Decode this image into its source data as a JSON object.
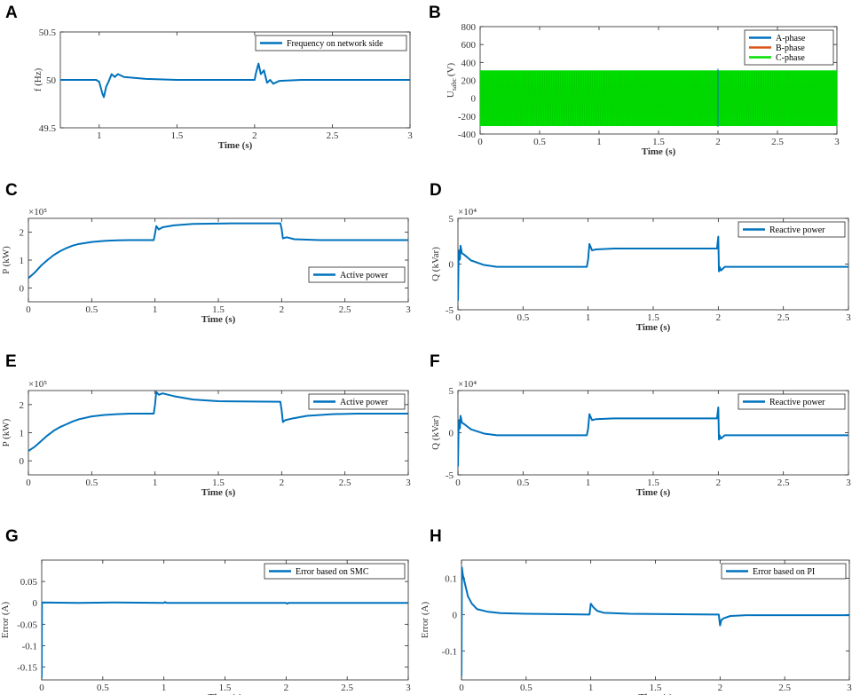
{
  "chart_data": [
    {
      "id": "A",
      "panel_label": "A",
      "type": "line",
      "title": "",
      "xlabel": "Time (s)",
      "ylabel": "f (Hz)",
      "y_multiplier": "",
      "xlim": [
        0.75,
        3
      ],
      "ylim": [
        49.5,
        50.5
      ],
      "xticks": [
        1,
        1.5,
        2,
        2.5,
        3
      ],
      "xtick_labels": [
        "1",
        "1.5",
        "2",
        "2.5",
        "3"
      ],
      "yticks": [
        49.5,
        50,
        50.5
      ],
      "ytick_labels": [
        "49.5",
        "50",
        "50.5"
      ],
      "legend": "top-right",
      "series": [
        {
          "name": "Frequency on network side",
          "color": "#0072BD",
          "points": [
            [
              0.75,
              50.0
            ],
            [
              0.98,
              50.0
            ],
            [
              1.0,
              49.98
            ],
            [
              1.02,
              49.86
            ],
            [
              1.03,
              49.82
            ],
            [
              1.045,
              49.93
            ],
            [
              1.06,
              49.98
            ],
            [
              1.08,
              50.06
            ],
            [
              1.1,
              50.03
            ],
            [
              1.12,
              50.06
            ],
            [
              1.16,
              50.03
            ],
            [
              1.3,
              50.01
            ],
            [
              1.5,
              50.0
            ],
            [
              2.0,
              50.0
            ],
            [
              2.01,
              50.08
            ],
            [
              2.025,
              50.17
            ],
            [
              2.04,
              50.06
            ],
            [
              2.06,
              50.1
            ],
            [
              2.08,
              49.97
            ],
            [
              2.1,
              50.0
            ],
            [
              2.12,
              49.96
            ],
            [
              2.16,
              49.99
            ],
            [
              2.3,
              50.0
            ],
            [
              3.0,
              50.0
            ]
          ]
        }
      ]
    },
    {
      "id": "B",
      "panel_label": "B",
      "type": "line",
      "title": "",
      "xlabel": "Time (s)",
      "ylabel": "U",
      "ylabel_sub": "sabc",
      "ylabel_unit": "(V)",
      "y_multiplier": "",
      "xlim": [
        0,
        3
      ],
      "ylim": [
        -400,
        800
      ],
      "xticks": [
        0,
        0.5,
        1,
        1.5,
        2,
        2.5,
        3
      ],
      "xtick_labels": [
        "0",
        "0.5",
        "1",
        "1.5",
        "2",
        "2.5",
        "3"
      ],
      "yticks": [
        -400,
        -200,
        0,
        200,
        400,
        600,
        800
      ],
      "ytick_labels": [
        "-400",
        "-200",
        "0",
        "200",
        "400",
        "600",
        "800"
      ],
      "legend": "top-right",
      "band": {
        "min": -311,
        "max": 311
      },
      "series": [
        {
          "name": "A-phase",
          "color": "#0072BD",
          "amplitude": 311
        },
        {
          "name": "B-phase",
          "color": "#D95319",
          "amplitude": 311
        },
        {
          "name": "C-phase",
          "color": "#00E000",
          "amplitude": 311
        }
      ]
    },
    {
      "id": "C",
      "panel_label": "C",
      "type": "line",
      "title": "",
      "xlabel": "Time (s)",
      "ylabel": "P (kW)",
      "y_multiplier": "×10⁵",
      "xlim": [
        0,
        3
      ],
      "ylim": [
        -0.5,
        2.5
      ],
      "xticks": [
        0,
        0.5,
        1,
        1.5,
        2,
        2.5,
        3
      ],
      "xtick_labels": [
        "0",
        "0.5",
        "1",
        "1.5",
        "2",
        "2.5",
        "3"
      ],
      "yticks": [
        0,
        1,
        2
      ],
      "ytick_labels": [
        "0",
        "1",
        "2"
      ],
      "legend": "bottom-right",
      "series": [
        {
          "name": "Active power",
          "color": "#0072BD",
          "points": [
            [
              0,
              0.35
            ],
            [
              0.05,
              0.55
            ],
            [
              0.1,
              0.8
            ],
            [
              0.15,
              1.0
            ],
            [
              0.2,
              1.18
            ],
            [
              0.25,
              1.32
            ],
            [
              0.3,
              1.43
            ],
            [
              0.35,
              1.52
            ],
            [
              0.4,
              1.58
            ],
            [
              0.5,
              1.65
            ],
            [
              0.6,
              1.69
            ],
            [
              0.7,
              1.71
            ],
            [
              0.8,
              1.72
            ],
            [
              0.99,
              1.72
            ],
            [
              1.0,
              1.95
            ],
            [
              1.01,
              2.22
            ],
            [
              1.03,
              2.1
            ],
            [
              1.06,
              2.18
            ],
            [
              1.15,
              2.25
            ],
            [
              1.3,
              2.3
            ],
            [
              1.6,
              2.32
            ],
            [
              1.99,
              2.32
            ],
            [
              2.0,
              2.12
            ],
            [
              2.01,
              1.78
            ],
            [
              2.04,
              1.82
            ],
            [
              2.1,
              1.75
            ],
            [
              2.3,
              1.72
            ],
            [
              3.0,
              1.72
            ]
          ]
        }
      ]
    },
    {
      "id": "D",
      "panel_label": "D",
      "type": "line",
      "title": "",
      "xlabel": "Time (s)",
      "ylabel": "Q (kVar)",
      "y_multiplier": "×10⁴",
      "xlim": [
        0,
        3
      ],
      "ylim": [
        -5,
        5
      ],
      "xticks": [
        0,
        0.5,
        1,
        1.5,
        2,
        2.5,
        3
      ],
      "xtick_labels": [
        "0",
        "0.5",
        "1",
        "1.5",
        "2",
        "2.5",
        "3"
      ],
      "yticks": [
        -5,
        0,
        5
      ],
      "ytick_labels": [
        "-5",
        "0",
        "5"
      ],
      "legend": "top-right",
      "series": [
        {
          "name": "Reactive power",
          "color": "#0072BD",
          "points": [
            [
              0,
              -4.0
            ],
            [
              0.005,
              0.5
            ],
            [
              0.01,
              1.5
            ],
            [
              0.015,
              0.5
            ],
            [
              0.02,
              2.0
            ],
            [
              0.03,
              1.2
            ],
            [
              0.05,
              1.0
            ],
            [
              0.1,
              0.4
            ],
            [
              0.2,
              -0.1
            ],
            [
              0.3,
              -0.3
            ],
            [
              0.5,
              -0.3
            ],
            [
              0.99,
              -0.3
            ],
            [
              1.0,
              0.5
            ],
            [
              1.01,
              2.2
            ],
            [
              1.03,
              1.5
            ],
            [
              1.06,
              1.6
            ],
            [
              1.2,
              1.7
            ],
            [
              1.99,
              1.7
            ],
            [
              2.0,
              3.0
            ],
            [
              2.005,
              -0.8
            ],
            [
              2.01,
              -0.3
            ],
            [
              2.02,
              -0.7
            ],
            [
              2.05,
              -0.3
            ],
            [
              3.0,
              -0.3
            ]
          ]
        }
      ]
    },
    {
      "id": "E",
      "panel_label": "E",
      "type": "line",
      "title": "",
      "xlabel": "Time (s)",
      "ylabel": "P (kW)",
      "y_multiplier": "×10⁵",
      "xlim": [
        0,
        3
      ],
      "ylim": [
        -0.5,
        2.5
      ],
      "xticks": [
        0,
        0.5,
        1,
        1.5,
        2,
        2.5,
        3
      ],
      "xtick_labels": [
        "0",
        "0.5",
        "1",
        "1.5",
        "2",
        "2.5",
        "3"
      ],
      "yticks": [
        0,
        1,
        2
      ],
      "ytick_labels": [
        "0",
        "1",
        "2"
      ],
      "legend": "top-right",
      "series": [
        {
          "name": "Active power",
          "color": "#0072BD",
          "points": [
            [
              0,
              0.35
            ],
            [
              0.05,
              0.5
            ],
            [
              0.1,
              0.7
            ],
            [
              0.15,
              0.9
            ],
            [
              0.2,
              1.07
            ],
            [
              0.25,
              1.2
            ],
            [
              0.3,
              1.3
            ],
            [
              0.35,
              1.4
            ],
            [
              0.4,
              1.48
            ],
            [
              0.5,
              1.58
            ],
            [
              0.6,
              1.63
            ],
            [
              0.7,
              1.66
            ],
            [
              0.8,
              1.68
            ],
            [
              0.99,
              1.68
            ],
            [
              1.0,
              2.0
            ],
            [
              1.01,
              2.45
            ],
            [
              1.03,
              2.35
            ],
            [
              1.06,
              2.4
            ],
            [
              1.15,
              2.3
            ],
            [
              1.3,
              2.18
            ],
            [
              1.5,
              2.12
            ],
            [
              1.99,
              2.1
            ],
            [
              2.0,
              1.8
            ],
            [
              2.01,
              1.38
            ],
            [
              2.03,
              1.45
            ],
            [
              2.08,
              1.5
            ],
            [
              2.2,
              1.6
            ],
            [
              2.4,
              1.66
            ],
            [
              2.6,
              1.68
            ],
            [
              3.0,
              1.68
            ]
          ]
        }
      ]
    },
    {
      "id": "F",
      "panel_label": "F",
      "type": "line",
      "title": "",
      "xlabel": "Time (s)",
      "ylabel": "Q (kVar)",
      "y_multiplier": "×10⁴",
      "xlim": [
        0,
        3
      ],
      "ylim": [
        -5,
        5
      ],
      "xticks": [
        0,
        0.5,
        1,
        1.5,
        2,
        2.5,
        3
      ],
      "xtick_labels": [
        "0",
        "0.5",
        "1",
        "1.5",
        "2",
        "2.5",
        "3"
      ],
      "yticks": [
        -5,
        0,
        5
      ],
      "ytick_labels": [
        "-5",
        "0",
        "5"
      ],
      "legend": "top-right",
      "series": [
        {
          "name": "Reactive power",
          "color": "#0072BD",
          "points": [
            [
              0,
              -4.0
            ],
            [
              0.005,
              0.5
            ],
            [
              0.01,
              1.5
            ],
            [
              0.015,
              0.5
            ],
            [
              0.02,
              2.0
            ],
            [
              0.03,
              1.2
            ],
            [
              0.05,
              1.0
            ],
            [
              0.1,
              0.4
            ],
            [
              0.2,
              -0.1
            ],
            [
              0.3,
              -0.3
            ],
            [
              0.5,
              -0.3
            ],
            [
              0.99,
              -0.3
            ],
            [
              1.0,
              0.5
            ],
            [
              1.01,
              2.2
            ],
            [
              1.03,
              1.5
            ],
            [
              1.06,
              1.6
            ],
            [
              1.2,
              1.7
            ],
            [
              1.99,
              1.7
            ],
            [
              2.0,
              3.0
            ],
            [
              2.005,
              -0.8
            ],
            [
              2.01,
              -0.3
            ],
            [
              2.02,
              -0.7
            ],
            [
              2.05,
              -0.3
            ],
            [
              3.0,
              -0.3
            ]
          ]
        }
      ]
    },
    {
      "id": "G",
      "panel_label": "G",
      "type": "line",
      "title": "",
      "xlabel": "Time (s)",
      "ylabel": "Error (A)",
      "y_multiplier": "",
      "xlim": [
        0,
        3
      ],
      "ylim": [
        -0.18,
        0.1
      ],
      "xticks": [
        0,
        0.5,
        1,
        1.5,
        2,
        2.5,
        3
      ],
      "xtick_labels": [
        "0",
        "0.5",
        "1",
        "1.5",
        "2",
        "2.5",
        "3"
      ],
      "yticks": [
        -0.15,
        -0.1,
        -0.05,
        0,
        0.05
      ],
      "ytick_labels": [
        "-0.15",
        "-0.1",
        "-0.05",
        "0",
        "0.05"
      ],
      "legend": "top-right",
      "series": [
        {
          "name": "Error based on SMC",
          "color": "#0072BD",
          "points": [
            [
              0,
              -0.175
            ],
            [
              0.002,
              0.0
            ],
            [
              0.01,
              0.001
            ],
            [
              0.3,
              0.0
            ],
            [
              0.6,
              0.001
            ],
            [
              1.0,
              0.0
            ],
            [
              1.01,
              0.002
            ],
            [
              1.02,
              0.0
            ],
            [
              1.5,
              0.0
            ],
            [
              2.0,
              0.0
            ],
            [
              2.01,
              -0.002
            ],
            [
              2.02,
              0.0
            ],
            [
              2.5,
              0.0
            ],
            [
              3.0,
              0.0
            ]
          ]
        }
      ]
    },
    {
      "id": "H",
      "panel_label": "H",
      "type": "line",
      "title": "",
      "xlabel": "Time (s)",
      "ylabel": "Error (A)",
      "y_multiplier": "",
      "xlim": [
        0,
        3
      ],
      "ylim": [
        -0.18,
        0.15
      ],
      "xticks": [
        0,
        0.5,
        1,
        1.5,
        2,
        2.5,
        3
      ],
      "xtick_labels": [
        "0",
        "0.5",
        "1",
        "1.5",
        "2",
        "2.5",
        "3"
      ],
      "yticks": [
        -0.1,
        0,
        0.1
      ],
      "ytick_labels": [
        "-0.1",
        "0",
        "0.1"
      ],
      "legend": "top-right",
      "series": [
        {
          "name": "Error based on PI",
          "color": "#0072BD",
          "points": [
            [
              0,
              -0.17
            ],
            [
              0.003,
              0.13
            ],
            [
              0.01,
              0.11
            ],
            [
              0.03,
              0.08
            ],
            [
              0.05,
              0.05
            ],
            [
              0.08,
              0.03
            ],
            [
              0.12,
              0.015
            ],
            [
              0.2,
              0.008
            ],
            [
              0.3,
              0.004
            ],
            [
              0.5,
              0.002
            ],
            [
              0.8,
              0.001
            ],
            [
              0.99,
              0.0
            ],
            [
              1.0,
              0.03
            ],
            [
              1.02,
              0.02
            ],
            [
              1.05,
              0.01
            ],
            [
              1.1,
              0.005
            ],
            [
              1.3,
              0.002
            ],
            [
              1.99,
              0.0
            ],
            [
              2.0,
              -0.03
            ],
            [
              2.01,
              -0.015
            ],
            [
              2.03,
              -0.01
            ],
            [
              2.08,
              -0.004
            ],
            [
              2.2,
              -0.002
            ],
            [
              3.0,
              -0.002
            ]
          ]
        }
      ]
    }
  ]
}
